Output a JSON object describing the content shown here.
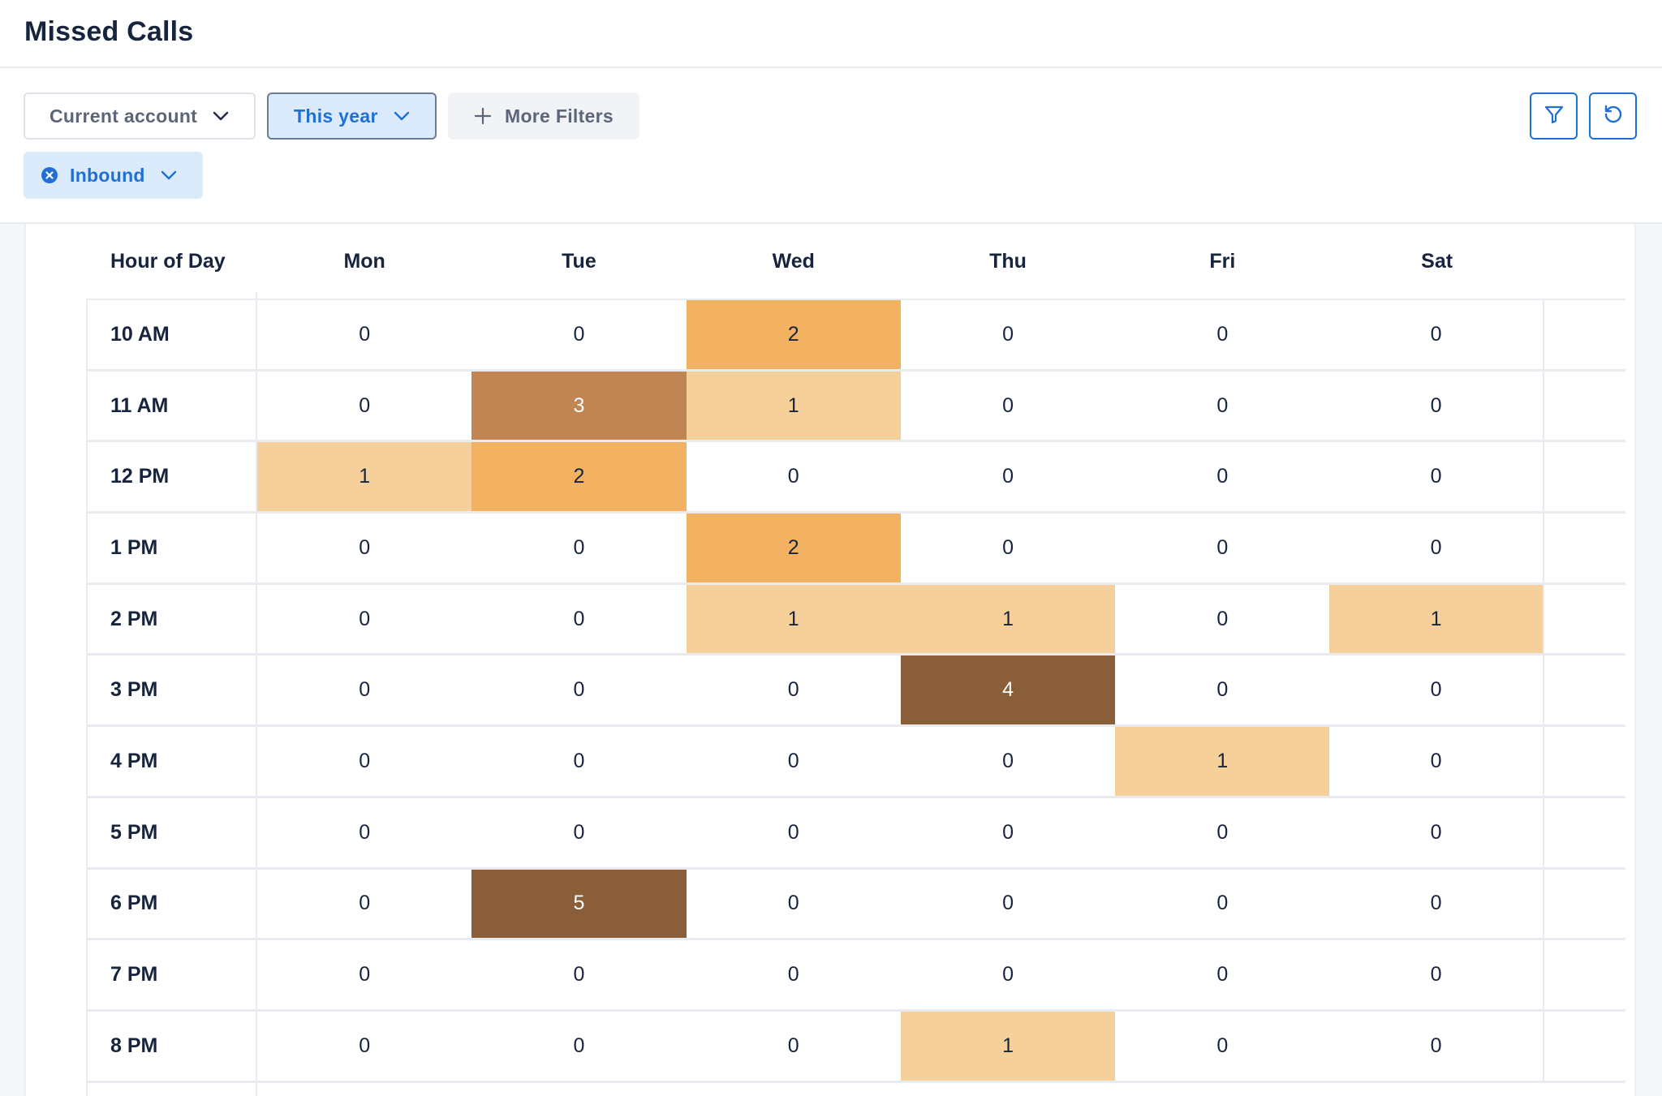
{
  "page": {
    "title": "Missed Calls"
  },
  "filters": {
    "account_label": "Current account",
    "period_label": "This year",
    "more_label": "More Filters",
    "direction_label": "Inbound"
  },
  "colors": {
    "accent": "#1f6fd6",
    "heat_1": "#f6d09a",
    "heat_2": "#f2b262",
    "heat_3": "#c08552",
    "heat_4": "#8b5e3a",
    "heat_5": "#8b5e3a"
  },
  "heatmap": {
    "header_label": "Hour of Day",
    "days": [
      "Mon",
      "Tue",
      "Wed",
      "Thu",
      "Fri",
      "Sat"
    ],
    "rows": [
      {
        "hour": "10 AM",
        "values": [
          0,
          0,
          2,
          0,
          0,
          0
        ]
      },
      {
        "hour": "11 AM",
        "values": [
          0,
          3,
          1,
          0,
          0,
          0
        ]
      },
      {
        "hour": "12 PM",
        "values": [
          1,
          2,
          0,
          0,
          0,
          0
        ]
      },
      {
        "hour": "1 PM",
        "values": [
          0,
          0,
          2,
          0,
          0,
          0
        ]
      },
      {
        "hour": "2 PM",
        "values": [
          0,
          0,
          1,
          1,
          0,
          1
        ]
      },
      {
        "hour": "3 PM",
        "values": [
          0,
          0,
          0,
          4,
          0,
          0
        ]
      },
      {
        "hour": "4 PM",
        "values": [
          0,
          0,
          0,
          0,
          1,
          0
        ]
      },
      {
        "hour": "5 PM",
        "values": [
          0,
          0,
          0,
          0,
          0,
          0
        ]
      },
      {
        "hour": "6 PM",
        "values": [
          0,
          5,
          0,
          0,
          0,
          0
        ]
      },
      {
        "hour": "7 PM",
        "values": [
          0,
          0,
          0,
          0,
          0,
          0
        ]
      },
      {
        "hour": "8 PM",
        "values": [
          0,
          0,
          0,
          1,
          0,
          0
        ]
      }
    ]
  },
  "chart_data": {
    "type": "heatmap",
    "xlabel": "",
    "ylabel": "Hour of Day",
    "x": [
      "Mon",
      "Tue",
      "Wed",
      "Thu",
      "Fri",
      "Sat"
    ],
    "y": [
      "10 AM",
      "11 AM",
      "12 PM",
      "1 PM",
      "2 PM",
      "3 PM",
      "4 PM",
      "5 PM",
      "6 PM",
      "7 PM",
      "8 PM"
    ],
    "values": [
      [
        0,
        0,
        2,
        0,
        0,
        0
      ],
      [
        0,
        3,
        1,
        0,
        0,
        0
      ],
      [
        1,
        2,
        0,
        0,
        0,
        0
      ],
      [
        0,
        0,
        2,
        0,
        0,
        0
      ],
      [
        0,
        0,
        1,
        1,
        0,
        1
      ],
      [
        0,
        0,
        0,
        4,
        0,
        0
      ],
      [
        0,
        0,
        0,
        0,
        1,
        0
      ],
      [
        0,
        0,
        0,
        0,
        0,
        0
      ],
      [
        0,
        5,
        0,
        0,
        0,
        0
      ],
      [
        0,
        0,
        0,
        0,
        0,
        0
      ],
      [
        0,
        0,
        0,
        1,
        0,
        0
      ]
    ]
  },
  "icons": {
    "filter": "filter-icon",
    "reset": "refresh-icon",
    "chevron": "chevron-down-icon",
    "plus": "plus-icon",
    "remove": "close-circle-icon"
  }
}
